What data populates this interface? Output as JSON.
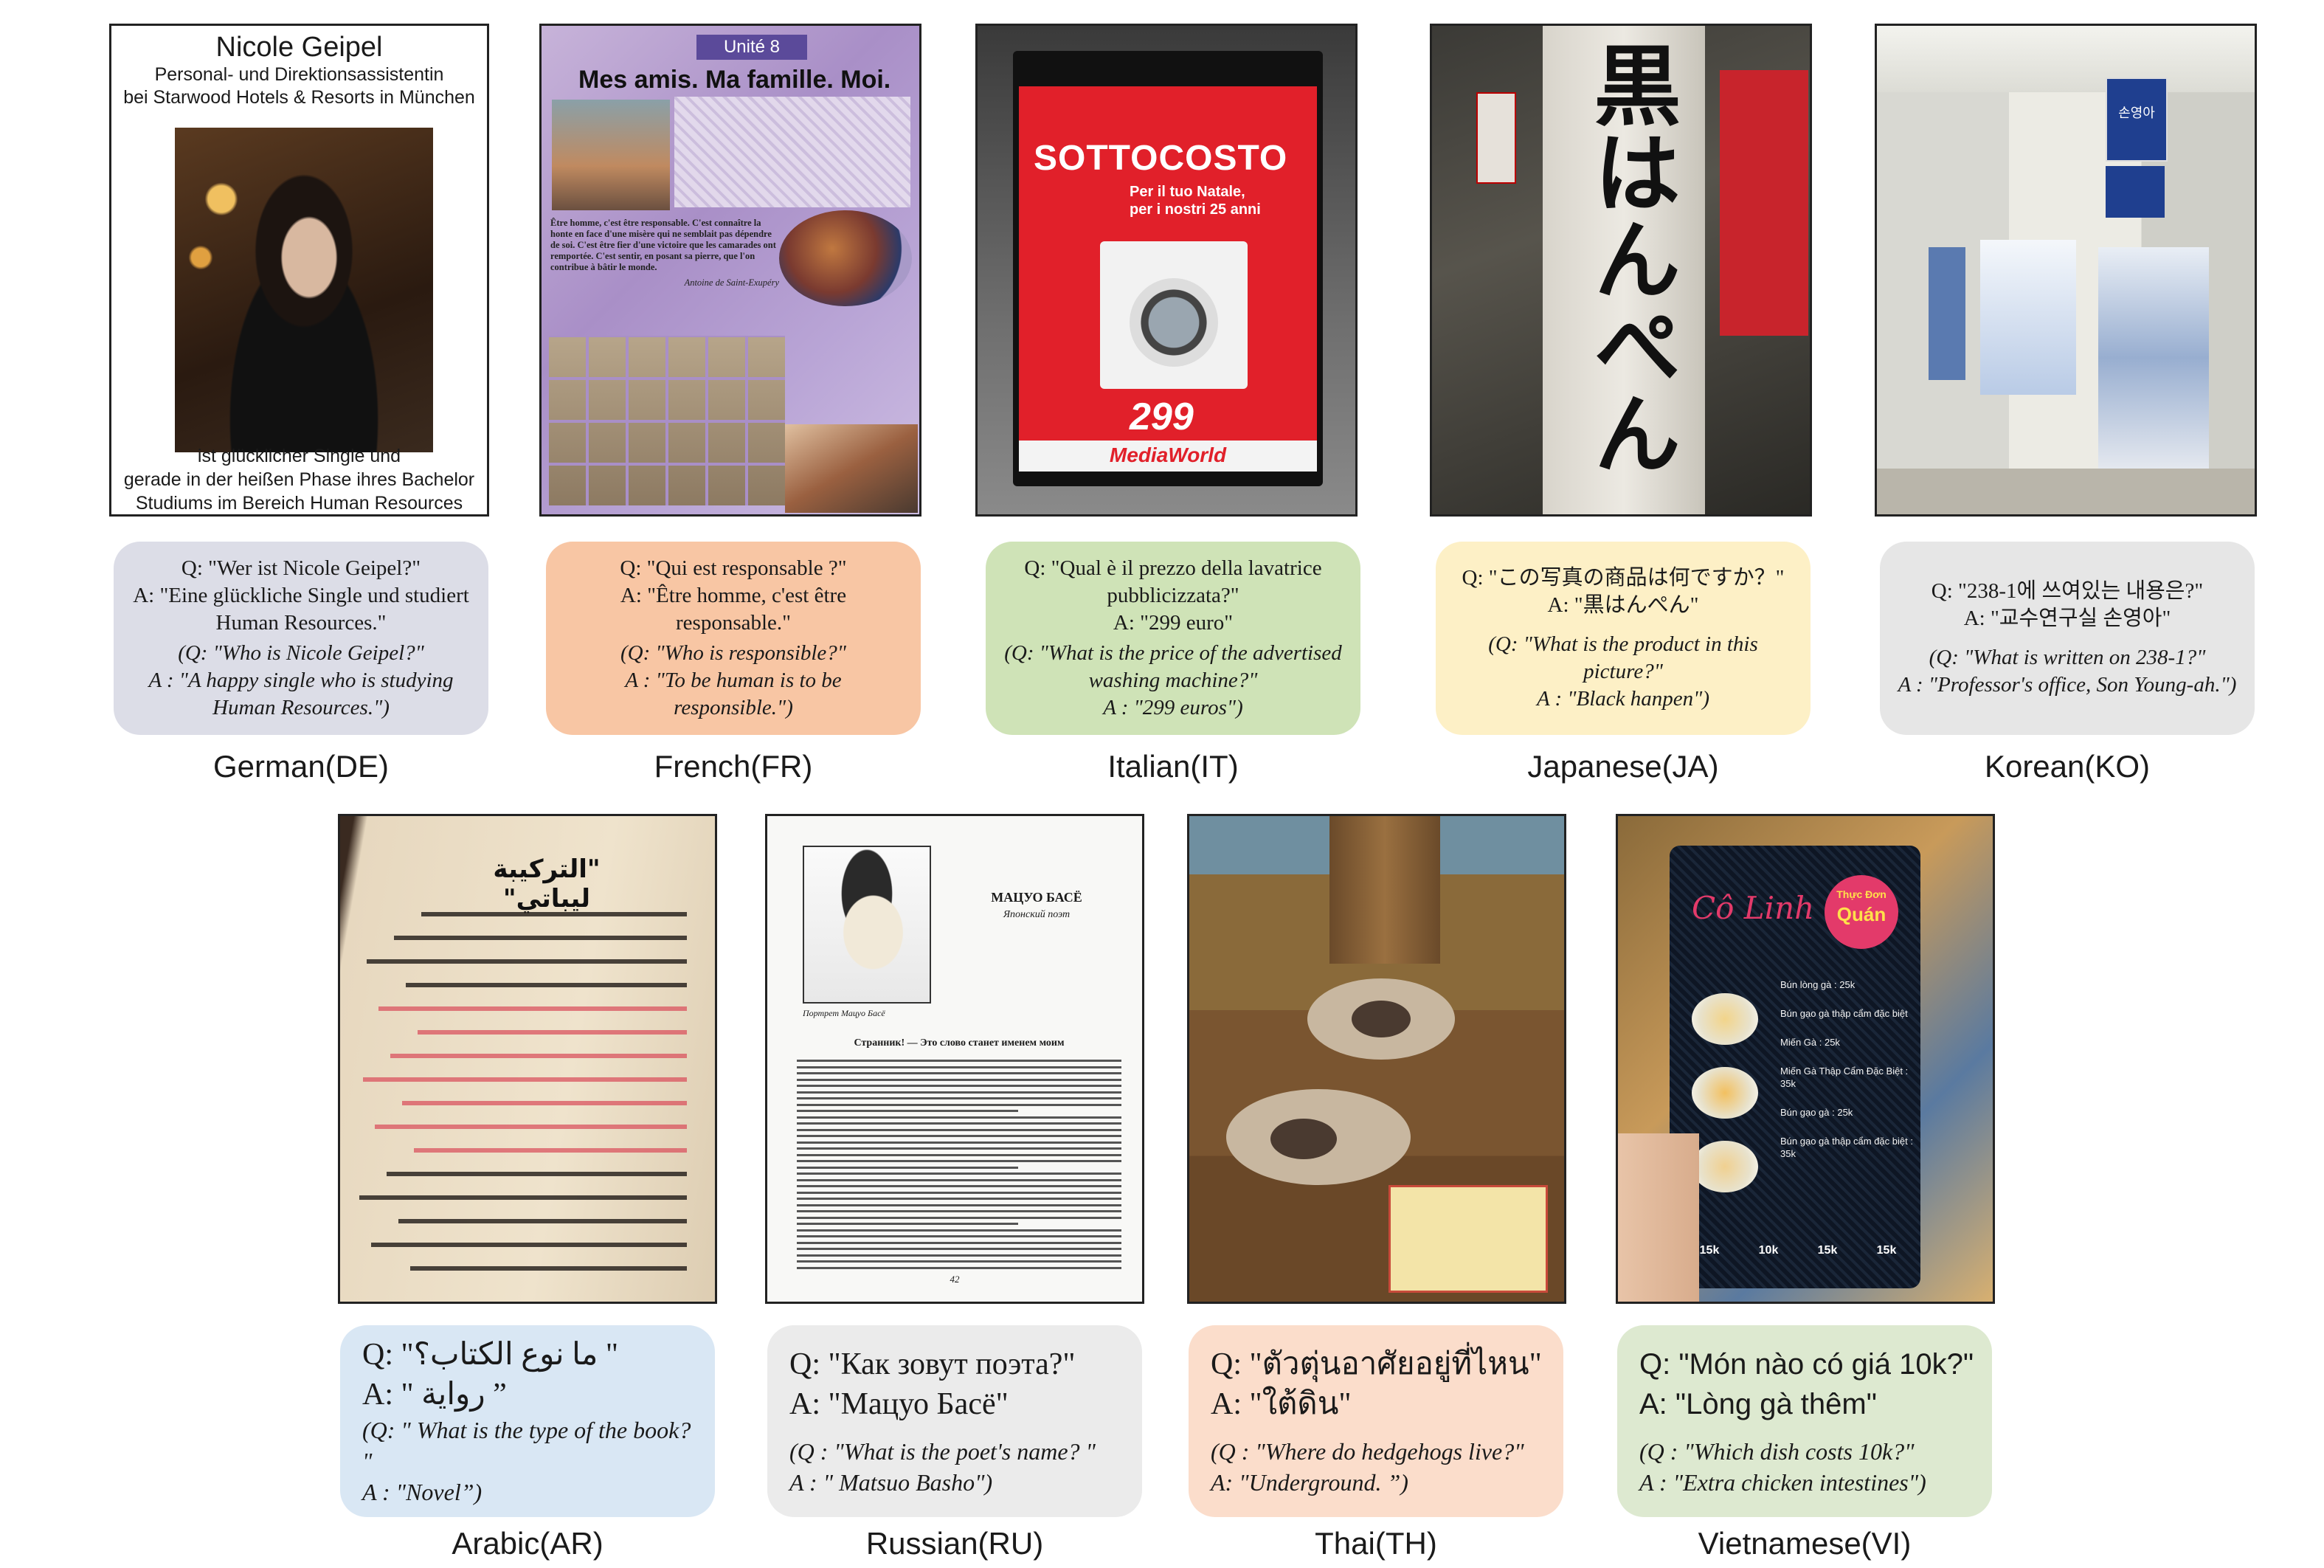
{
  "figure": {
    "panels": [
      {
        "id": "de",
        "language": "German(DE)",
        "image_text": {
          "name": "Nicole Geipel",
          "role_line1": "Personal- und Direktionsassistentin",
          "role_line2": "bei Starwood Hotels & Resorts in München",
          "bottom_line1": "ist glücklicher Single und",
          "bottom_line2": "gerade in der heißen Phase ihres Bachelor",
          "bottom_line3": "Studiums im Bereich Human Resources"
        },
        "q": "Q: \"Wer ist Nicole Geipel?\"",
        "a": "A: \"Eine glückliche Single und studiert Human Resources.\"",
        "tq": "(Q: \"Who is Nicole Geipel?\"",
        "ta": "A : \"A happy single who is studying Human Resources.\")"
      },
      {
        "id": "fr",
        "language": "French(FR)",
        "image_text": {
          "unit": "Unité 8",
          "title": "Mes amis. Ma famille. Moi.",
          "quote": "Être homme, c'est être responsable. C'est connaître la honte en face d'une misère qui ne semblait pas dépendre de soi. C'est être fier d'une victoire que les camarades ont remportée. C'est sentir, en posant sa pierre, que l'on contribue à bâtir le monde.",
          "author": "Antoine de Saint-Exupéry"
        },
        "q": "Q: \"Qui est responsable ?\"",
        "a": "A: \"Être homme, c'est être responsable.\"",
        "tq": "(Q: \"Who is responsible?\"",
        "ta": "A : \"To be human is to be responsible.\")"
      },
      {
        "id": "it",
        "language": "Italian(IT)",
        "image_text": {
          "headline": "SOTTOCOSTO",
          "sub1": "Per il tuo Natale,",
          "sub2": "per i nostri 25 anni",
          "price": "299",
          "brand": "MediaWorld"
        },
        "q": "Q: \"Qual è il prezzo della lavatrice pubblicizzata?\"",
        "a": "A: \"299 euro\"",
        "tq": "(Q: \"What is the price of the advertised washing machine?\"",
        "ta": "A : \"299 euros\")"
      },
      {
        "id": "ja",
        "language": "Japanese(JA)",
        "image_text": {
          "banner": "黒はんぺん"
        },
        "q": "Q: \"この写真の商品は何ですか？\"",
        "a": "A: \"黒はんぺん\"",
        "tq": "(Q: \"What is the product in this picture?\"",
        "ta": "A : \"Black hanpen\")"
      },
      {
        "id": "ko",
        "language": "Korean(KO)",
        "image_text": {
          "sign": "손영아"
        },
        "q": "Q: \"238-1에 쓰여있는 내용은?\"",
        "a": "A: \"교수연구실 손영아\"",
        "tq": "(Q: \"What is written on 238-1?\"",
        "ta": "A : \"Professor's office, Son Young-ah.\")"
      },
      {
        "id": "ar",
        "language": "Arabic(AR)",
        "image_text": {
          "heading": "\"التركيبة ليباتي\""
        },
        "q": "Q: \"ما نوع الكتاب؟ \"",
        "a": "A: \" رواية ”",
        "tq": "(Q: \" What is the type of the book? \"",
        "ta": "A : \"Novel”)"
      },
      {
        "id": "ru",
        "language": "Russian(RU)",
        "image_text": {
          "title": "МАЦУО БАСЁ",
          "subtitle": "Японский поэт",
          "caption": "Портрет Мацуо Басё",
          "section": "Странник! — Это слово станет именем моим",
          "page": "42"
        },
        "q": "Q: \"Как зовут поэта?\"",
        "a": "A: \"Мацуо Басё\"",
        "tq": "(Q : \"What is the poet's name? \"",
        "ta": "A : \" Matsuo Basho\")"
      },
      {
        "id": "th",
        "language": "Thai(TH)",
        "image_text": {},
        "q": "Q: \"ตัวตุ่นอาศัยอยู่ที่ไหน\"",
        "a": "A: \"ใต้ดิน\"",
        "tq": "(Q : \"Where do hedgehogs live?\"",
        "ta": "A: \"Underground. ”)"
      },
      {
        "id": "vi",
        "language": "Vietnamese(VI)",
        "image_text": {
          "shop": "Cô Linh",
          "tag_top": "Thực Đơn",
          "tag_bottom": "Quán",
          "items": [
            "Bún lòng gà : 25k",
            "Bún gạo gà thập cẩm đặc biệt",
            "Miến Gà : 25k",
            "Miến Gà Thập Cẩm Đặc Biệt : 35k",
            "Bún gạo gà : 25k",
            "Bún gạo gà thập cẩm đặc biệt : 35k"
          ],
          "extras": [
            "15k",
            "10k",
            "15k",
            "15k"
          ]
        },
        "q": "Q: \"Món nào có giá 10k?\"",
        "a": "A: \"Lòng gà thêm\"",
        "tq": "(Q : \"Which dish costs 10k?\"",
        "ta": "A : \"Extra chicken intestines\")"
      }
    ],
    "colors": {
      "de": "#dcdde7",
      "fr": "#f8c6a4",
      "it": "#cfe3b7",
      "ja": "#fdf0c6",
      "ko": "#e6e6e6",
      "ar": "#d9e7f4",
      "ru": "#ebebeb",
      "th": "#fbddcb",
      "vi": "#dde9d0"
    }
  }
}
